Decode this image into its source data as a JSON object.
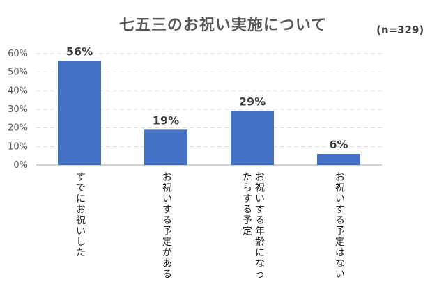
{
  "chart_data": {
    "type": "bar",
    "title": "七五三のお祝い実施について",
    "note": "(n=329)",
    "categories": [
      "すでにお祝いした",
      "お祝いする予定がある",
      "お祝いする年齢になったらする予定",
      "お祝いする予定はない"
    ],
    "category_lines": [
      [
        "すでにお祝いした"
      ],
      [
        "お祝いする予定がある"
      ],
      [
        "お祝いする年齢になっ",
        "たらする予定"
      ],
      [
        "お祝いする予定はない"
      ]
    ],
    "values": [
      56,
      19,
      29,
      6
    ],
    "data_labels": [
      "56%",
      "19%",
      "29%",
      "6%"
    ],
    "y_ticks": [
      "0%",
      "10%",
      "20%",
      "30%",
      "40%",
      "50%",
      "60%"
    ],
    "ylim": [
      0,
      60
    ],
    "grid": true,
    "bar_color": "#4472C4",
    "grid_color": "#D9D9D9",
    "axis_color": "#A6A6A6"
  }
}
